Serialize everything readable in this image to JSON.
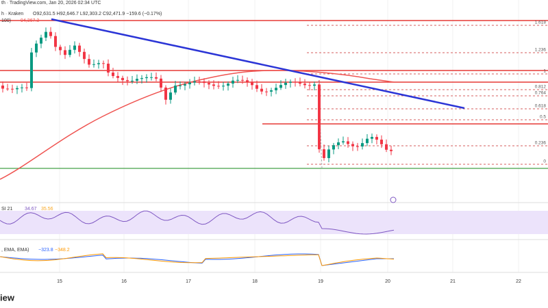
{
  "header": {
    "source": "th · TradingView.com, Jan 20, 2026 02:34 UTC",
    "symbol": "h · Kraken",
    "ohlc": "O92,631.5 H92,646.7 L92,303.2 C92,471.9 −159.6 (−0.17%)",
    "ma": "100)",
    "ma_value": "94,367.3"
  },
  "fib_levels": [
    "1.618",
    "1.236",
    "1",
    "0.812",
    "0.764",
    "0.618",
    "0.5",
    "0.236",
    "0"
  ],
  "dates": [
    "15",
    "16",
    "17",
    "18",
    "19",
    "20",
    "21",
    "22"
  ],
  "rsi": {
    "label": "SI 21",
    "value1": "34.67",
    "value2": "35.56"
  },
  "macd": {
    "label": ", EMA, EMA)",
    "value1": "−323.8",
    "value2": "−348.2"
  },
  "watermark": "iew"
}
